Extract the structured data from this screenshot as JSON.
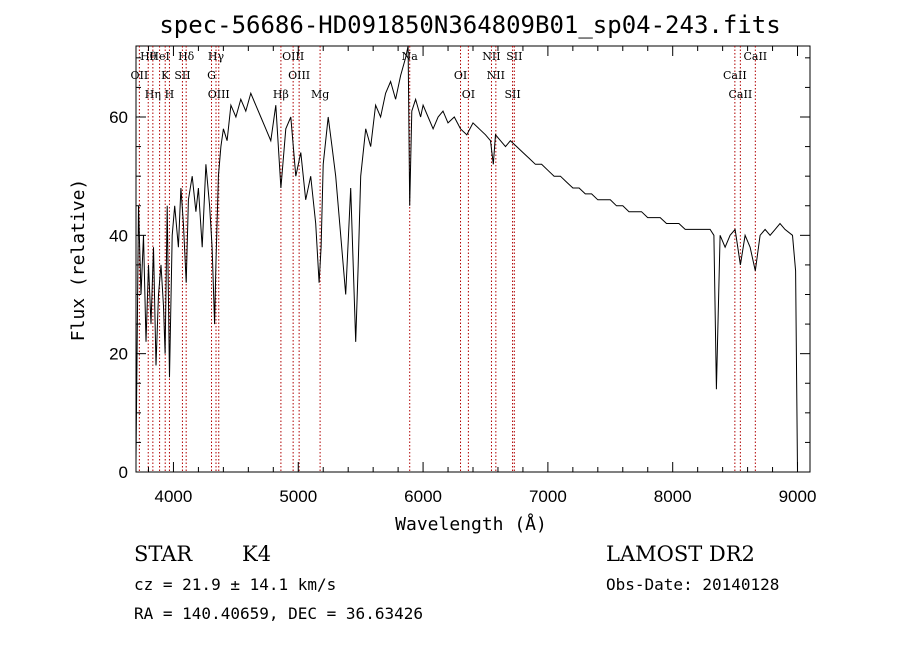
{
  "chart_data": {
    "type": "line",
    "title": "spec-56686-HD091850N364809B01_sp04-243.fits",
    "xlabel": "Wavelength (Å)",
    "ylabel": "Flux (relative)",
    "xlim": [
      3700,
      9100
    ],
    "ylim": [
      0,
      72
    ],
    "xticks": [
      4000,
      5000,
      6000,
      7000,
      8000,
      9000
    ],
    "yticks": [
      0,
      20,
      40,
      60
    ],
    "grid": false,
    "series": [
      {
        "x": [
          3700,
          3720,
          3740,
          3760,
          3780,
          3800,
          3820,
          3840,
          3860,
          3880,
          3900,
          3920,
          3933,
          3950,
          3968,
          3990,
          4010,
          4040,
          4060,
          4080,
          4102,
          4120,
          4150,
          4180,
          4200,
          4230,
          4260,
          4290,
          4310,
          4330,
          4340,
          4360,
          4380,
          4400,
          4430,
          4460,
          4500,
          4540,
          4580,
          4620,
          4660,
          4700,
          4740,
          4780,
          4820,
          4861,
          4900,
          4940,
          4980,
          5020,
          5060,
          5100,
          5140,
          5167,
          5183,
          5200,
          5240,
          5270,
          5300,
          5340,
          5380,
          5420,
          5460,
          5480,
          5500,
          5540,
          5580,
          5620,
          5660,
          5700,
          5740,
          5780,
          5820,
          5860,
          5880,
          5893,
          5910,
          5940,
          5980,
          6000,
          6040,
          6080,
          6120,
          6160,
          6200,
          6250,
          6300,
          6350,
          6400,
          6450,
          6500,
          6540,
          6563,
          6580,
          6620,
          6660,
          6700,
          6750,
          6800,
          6850,
          6900,
          6950,
          7000,
          7050,
          7100,
          7150,
          7200,
          7250,
          7300,
          7350,
          7400,
          7450,
          7500,
          7550,
          7600,
          7650,
          7700,
          7750,
          7800,
          7850,
          7900,
          7950,
          8000,
          8050,
          8100,
          8150,
          8200,
          8250,
          8300,
          8330,
          8350,
          8380,
          8420,
          8460,
          8500,
          8542,
          8580,
          8620,
          8662,
          8700,
          8740,
          8780,
          8820,
          8860,
          8900,
          8960,
          8985,
          9000
        ],
        "y": [
          2,
          45,
          30,
          40,
          22,
          35,
          25,
          38,
          18,
          30,
          35,
          28,
          20,
          45,
          16,
          40,
          45,
          38,
          48,
          42,
          32,
          46,
          50,
          44,
          48,
          38,
          52,
          45,
          38,
          25,
          35,
          50,
          55,
          58,
          56,
          62,
          60,
          63,
          61,
          64,
          62,
          60,
          58,
          56,
          62,
          48,
          58,
          60,
          50,
          54,
          46,
          50,
          42,
          32,
          38,
          52,
          60,
          55,
          50,
          40,
          30,
          48,
          22,
          35,
          50,
          58,
          55,
          62,
          60,
          64,
          66,
          63,
          67,
          70,
          72,
          45,
          61,
          63,
          60,
          62,
          60,
          58,
          60,
          61,
          59,
          60,
          58,
          57,
          59,
          58,
          57,
          56,
          52,
          57,
          56,
          55,
          56,
          55,
          54,
          53,
          52,
          52,
          51,
          50,
          50,
          49,
          48,
          48,
          47,
          47,
          46,
          46,
          46,
          45,
          45,
          44,
          44,
          44,
          43,
          43,
          43,
          42,
          42,
          42,
          41,
          41,
          41,
          41,
          41,
          40,
          14,
          40,
          38,
          40,
          41,
          35,
          40,
          38,
          34,
          40,
          41,
          40,
          41,
          42,
          41,
          40,
          34,
          0
        ]
      }
    ],
    "lines": [
      {
        "label": "Hθ",
        "x": 3798
      },
      {
        "label": "OII",
        "x": 3727
      },
      {
        "label": "Hη",
        "x": 3835
      },
      {
        "label": "HeI",
        "x": 3889
      },
      {
        "label": "K",
        "x": 3934
      },
      {
        "label": "H",
        "x": 3968
      },
      {
        "label": "Hδ",
        "x": 4102
      },
      {
        "label": "SII",
        "x": 4072
      },
      {
        "label": "OIII",
        "x": 4363
      },
      {
        "label": "Hγ",
        "x": 4341
      },
      {
        "label": "G",
        "x": 4305
      },
      {
        "label": "Hβ",
        "x": 4861
      },
      {
        "label": "OIII",
        "x": 4959
      },
      {
        "label": "OIII",
        "x": 5007
      },
      {
        "label": "Mg",
        "x": 5175
      },
      {
        "label": "Na",
        "x": 5893
      },
      {
        "label": "OI",
        "x": 6300
      },
      {
        "label": "OI",
        "x": 6363
      },
      {
        "label": "NII",
        "x": 6548
      },
      {
        "label": "NII",
        "x": 6583
      },
      {
        "label": "SII",
        "x": 6717
      },
      {
        "label": "SII",
        "x": 6731
      },
      {
        "label": "CaII",
        "x": 8498
      },
      {
        "label": "CaII",
        "x": 8542
      },
      {
        "label": "CaII",
        "x": 8662
      }
    ]
  },
  "info": {
    "object_class": "STAR",
    "subclass": "K4",
    "survey": "LAMOST DR2",
    "cz": "cz = 21.9 ± 14.1 km/s",
    "obs_date": "Obs-Date: 20140128",
    "coords": "RA = 140.40659, DEC =  36.63426"
  },
  "colors": {
    "spectrum": "#000000",
    "line_markers": "#b00000",
    "axes": "#000000"
  }
}
